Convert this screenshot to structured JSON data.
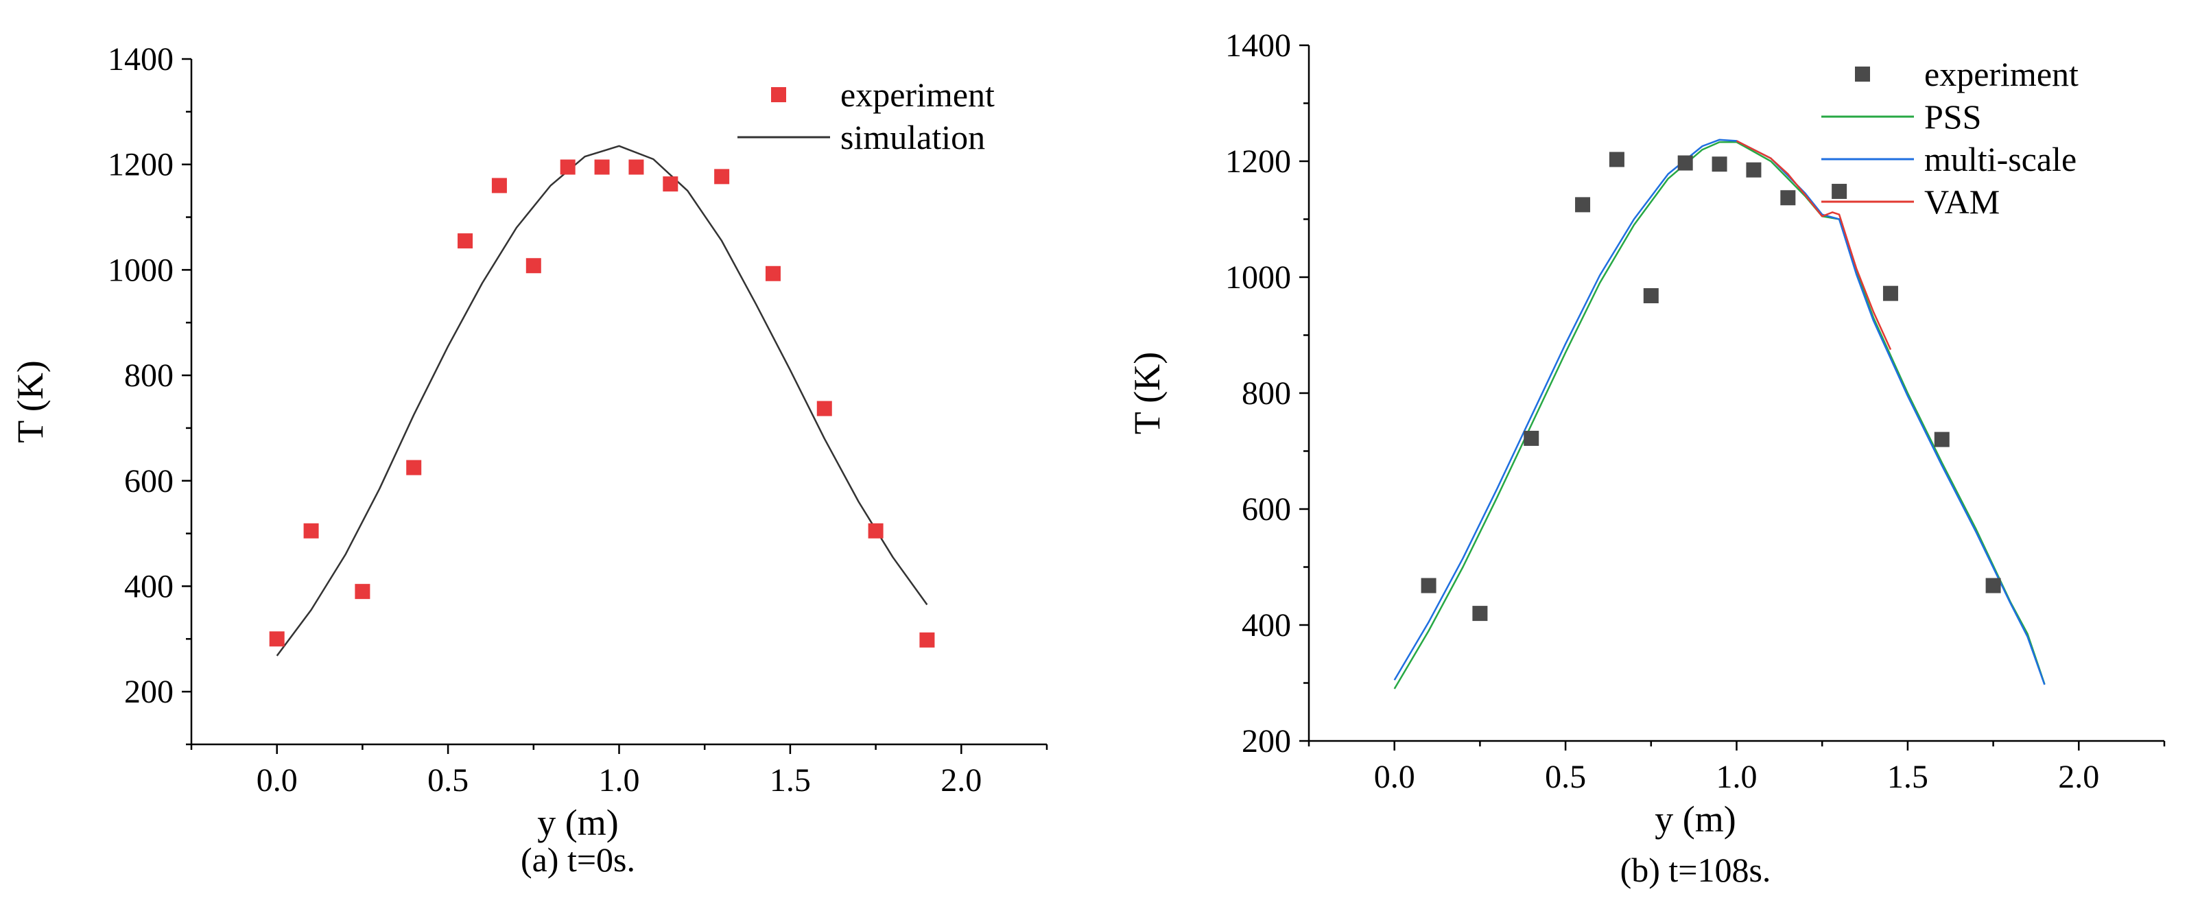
{
  "chart_data": [
    {
      "type": "scatter",
      "caption": "(a) t=0s.",
      "xlabel": "y (m)",
      "ylabel": "T (K)",
      "xlim": [
        -0.25,
        2.25
      ],
      "ylim": [
        100,
        1400
      ],
      "xticks": [
        "0.0",
        "0.5",
        "1.0",
        "1.5",
        "2.0"
      ],
      "yticks": [
        "200",
        "400",
        "600",
        "800",
        "1000",
        "1200",
        "1400"
      ],
      "legend_position": "top-right",
      "scatter_series": [
        {
          "name": "experiment",
          "color": "#e8393c",
          "x": [
            0.0,
            0.1,
            0.25,
            0.4,
            0.55,
            0.65,
            0.75,
            0.85,
            0.95,
            1.05,
            1.15,
            1.3,
            1.45,
            1.6,
            1.75,
            1.9
          ],
          "y": [
            300,
            505,
            390,
            625,
            1055,
            1160,
            1008,
            1195,
            1195,
            1195,
            1163,
            1177,
            993,
            737,
            505,
            298
          ]
        }
      ],
      "line_series": [
        {
          "name": "simulation",
          "color": "#333333",
          "x": [
            0.0,
            0.1,
            0.2,
            0.3,
            0.4,
            0.5,
            0.6,
            0.7,
            0.8,
            0.9,
            1.0,
            1.1,
            1.2,
            1.3,
            1.4,
            1.5,
            1.6,
            1.7,
            1.8,
            1.9
          ],
          "y": [
            268,
            355,
            460,
            585,
            725,
            855,
            975,
            1080,
            1160,
            1215,
            1235,
            1210,
            1150,
            1055,
            935,
            810,
            680,
            560,
            455,
            365
          ]
        }
      ]
    },
    {
      "type": "scatter",
      "caption": "(b) t=108s.",
      "xlabel": "y (m)",
      "ylabel": "T (K)",
      "xlim": [
        -0.25,
        2.25
      ],
      "ylim": [
        200,
        1400
      ],
      "xticks": [
        "0.0",
        "0.5",
        "1.0",
        "1.5",
        "2.0"
      ],
      "yticks": [
        "200",
        "400",
        "600",
        "800",
        "1000",
        "1200",
        "1400"
      ],
      "legend_position": "top-right",
      "scatter_series": [
        {
          "name": "experiment",
          "color": "#4a4a4a",
          "x": [
            0.1,
            0.25,
            0.4,
            0.55,
            0.65,
            0.75,
            0.85,
            0.95,
            1.05,
            1.15,
            1.3,
            1.45,
            1.6,
            1.75
          ],
          "y": [
            468,
            420,
            722,
            1125,
            1203,
            968,
            1197,
            1195,
            1185,
            1137,
            1148,
            972,
            720,
            468
          ]
        }
      ],
      "line_series": [
        {
          "name": "PSS",
          "color": "#27a844",
          "x": [
            0.0,
            0.1,
            0.2,
            0.3,
            0.4,
            0.5,
            0.6,
            0.7,
            0.8,
            0.9,
            0.95,
            1.0,
            1.1,
            1.2,
            1.25,
            1.3,
            1.35,
            1.4,
            1.5,
            1.6,
            1.7,
            1.8,
            1.85,
            1.9
          ],
          "y": [
            290,
            390,
            500,
            620,
            745,
            870,
            990,
            1090,
            1170,
            1220,
            1233,
            1233,
            1200,
            1140,
            1105,
            1100,
            1010,
            930,
            800,
            680,
            565,
            440,
            385,
            298
          ]
        },
        {
          "name": "multi-scale",
          "color": "#1f6fe0",
          "x": [
            0.0,
            0.1,
            0.2,
            0.3,
            0.4,
            0.5,
            0.6,
            0.7,
            0.8,
            0.9,
            0.95,
            1.0,
            1.1,
            1.2,
            1.25,
            1.3,
            1.35,
            1.4,
            1.5,
            1.6,
            1.7,
            1.8,
            1.85,
            1.9
          ],
          "y": [
            305,
            405,
            515,
            635,
            760,
            885,
            1003,
            1100,
            1178,
            1226,
            1237,
            1235,
            1205,
            1145,
            1108,
            1100,
            1005,
            925,
            795,
            675,
            560,
            438,
            380,
            297
          ]
        },
        {
          "name": "VAM",
          "color": "#e23a32",
          "x": [
            1.0,
            1.1,
            1.15,
            1.2,
            1.25,
            1.28,
            1.3,
            1.35,
            1.4,
            1.45
          ],
          "y": [
            1235,
            1205,
            1178,
            1142,
            1105,
            1112,
            1108,
            1015,
            940,
            875
          ]
        }
      ]
    }
  ]
}
